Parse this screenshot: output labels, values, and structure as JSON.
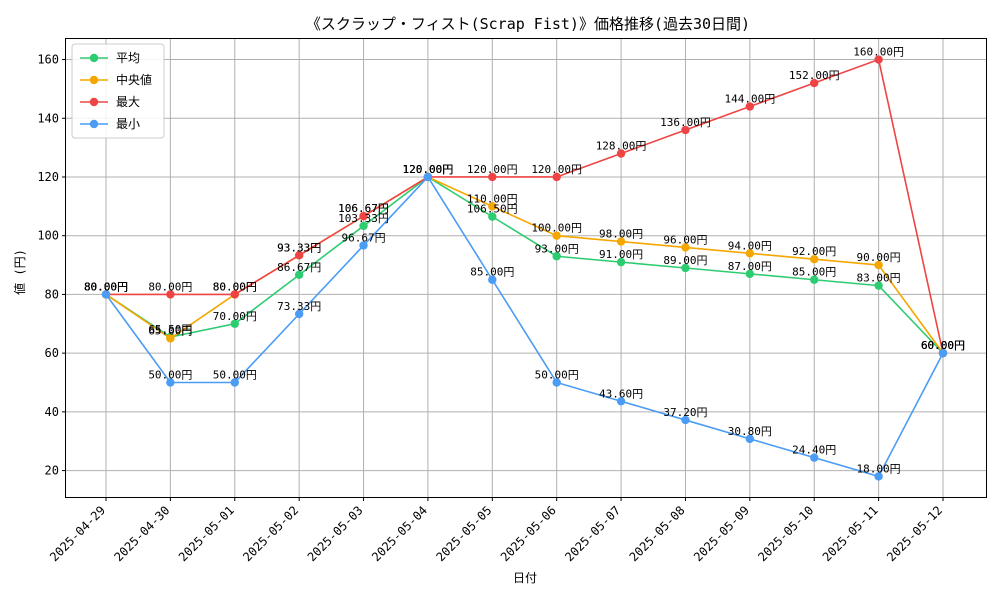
{
  "chart_data": {
    "type": "line",
    "title": "《スクラップ・フィスト(Scrap Fist)》価格推移(過去30日間)",
    "xlabel": "日付",
    "ylabel": "値 (円)",
    "categories": [
      "2025-04-29",
      "2025-04-30",
      "2025-05-01",
      "2025-05-02",
      "2025-05-03",
      "2025-05-04",
      "2025-05-05",
      "2025-05-06",
      "2025-05-07",
      "2025-05-08",
      "2025-05-09",
      "2025-05-10",
      "2025-05-11",
      "2025-05-12"
    ],
    "ylim": [
      11,
      167
    ],
    "yticks": [
      20,
      40,
      60,
      80,
      100,
      120,
      140,
      160
    ],
    "grid": true,
    "legend_position": "top-left",
    "value_suffix": "円",
    "series": [
      {
        "name": "平均",
        "color": "#2ecc71",
        "values": [
          80,
          65.5,
          70,
          86.67,
          103.33,
          120,
          106.5,
          93,
          91,
          89,
          87,
          85,
          83,
          60
        ]
      },
      {
        "name": "中央値",
        "color": "#f5a700",
        "values": [
          80,
          65,
          80,
          93.33,
          106.67,
          120,
          110,
          100,
          98,
          96,
          94,
          92,
          90,
          60
        ]
      },
      {
        "name": "最大",
        "color": "#ef4444",
        "values": [
          80,
          80,
          80,
          93.33,
          106.67,
          120,
          120,
          120,
          128,
          136,
          144,
          152,
          160,
          60
        ]
      },
      {
        "name": "最小",
        "color": "#4a9cf5",
        "values": [
          80,
          50,
          50,
          73.33,
          96.67,
          120,
          85,
          50,
          43.6,
          37.2,
          30.8,
          24.4,
          18,
          60
        ]
      }
    ]
  }
}
